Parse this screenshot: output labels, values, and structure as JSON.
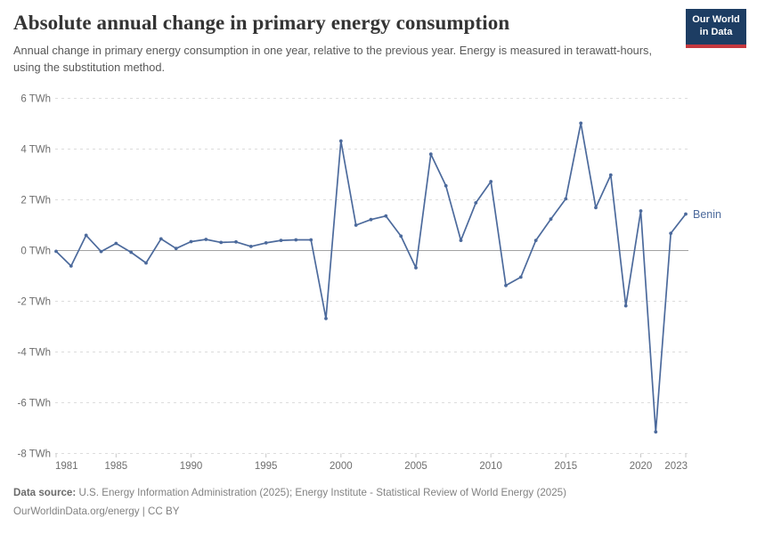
{
  "header": {
    "title": "Absolute annual change in primary energy consumption",
    "subtitle": "Annual change in primary energy consumption in one year, relative to the previous year. Energy is measured in terawatt-hours, using the substitution method.",
    "logo": {
      "line1": "Our World",
      "line2": "in Data",
      "bg_color": "#1d3d63",
      "accent_color": "#c5383f"
    }
  },
  "chart_data": {
    "type": "line",
    "title": "Absolute annual change in primary energy consumption",
    "unit": "TWh",
    "xlim": [
      1981,
      2023
    ],
    "ylim": [
      -8,
      6
    ],
    "grid": "horizontal-dashed",
    "zero_line": true,
    "legend_position": "end-of-line-label",
    "yticks": [
      6,
      4,
      2,
      0,
      -2,
      -4,
      -6,
      -8
    ],
    "ytick_suffix": " TWh",
    "xticks": [
      1981,
      1985,
      1990,
      1995,
      2000,
      2005,
      2010,
      2015,
      2020,
      2023
    ],
    "series": [
      {
        "name": "Benin",
        "color": "#4c6a9c",
        "x": [
          1981,
          1982,
          1983,
          1984,
          1985,
          1986,
          1987,
          1988,
          1989,
          1990,
          1991,
          1992,
          1993,
          1994,
          1995,
          1996,
          1997,
          1998,
          1999,
          2000,
          2001,
          2002,
          2003,
          2004,
          2005,
          2006,
          2007,
          2008,
          2009,
          2010,
          2011,
          2012,
          2013,
          2014,
          2015,
          2016,
          2017,
          2018,
          2019,
          2020,
          2021,
          2022,
          2023
        ],
        "values": [
          -0.03,
          -0.61,
          0.6,
          -0.04,
          0.28,
          -0.07,
          -0.49,
          0.46,
          0.08,
          0.35,
          0.44,
          0.32,
          0.34,
          0.16,
          0.3,
          0.4,
          0.42,
          0.42,
          -2.68,
          4.32,
          1.0,
          1.22,
          1.36,
          0.57,
          -0.68,
          3.8,
          2.55,
          0.4,
          1.88,
          2.72,
          -1.38,
          -1.05,
          0.4,
          1.24,
          2.04,
          5.02,
          1.69,
          2.98,
          -2.18,
          1.56,
          -7.15,
          0.68,
          1.44
        ]
      }
    ],
    "colors": {
      "grid": "#dcdcdc",
      "zero_line": "#a3a3a3",
      "tick": "#c8c8c8",
      "axis_text": "#6e6e6e"
    }
  },
  "footer": {
    "datasource_label": "Data source:",
    "datasource_text": " U.S. Energy Information Administration (2025); Energy Institute - Statistical Review of World Energy (2025)",
    "license_line": "OurWorldinData.org/energy | CC BY"
  }
}
